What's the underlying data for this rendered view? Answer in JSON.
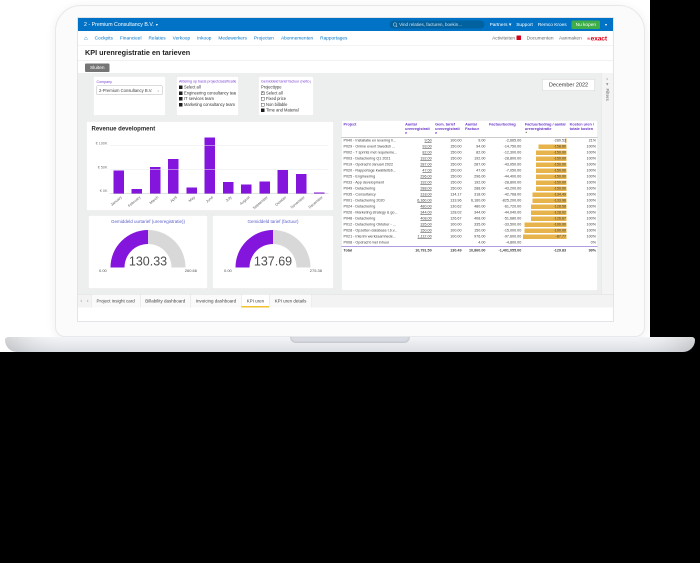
{
  "topbar": {
    "title": "2 - Premium Consultancy B.V.",
    "search_placeholder": "Vind relaties, facturen, boekin...",
    "links": [
      "Partners",
      "Support",
      "Remco Kroes"
    ],
    "buy_button": "Nu kopen"
  },
  "navbar": {
    "items": [
      "Cockpits",
      "Financieel",
      "Relaties",
      "Verkoop",
      "Inkoop",
      "Medewerkers",
      "Projecten",
      "Abonnementen",
      "Rapportages"
    ],
    "right_items": [
      "Activiteiten",
      "Documenten",
      "Aanmaken"
    ],
    "logo_text": "exact"
  },
  "page": {
    "title": "KPI urenregistratie en tarieven",
    "close_button": "Sluiten",
    "period": "December 2022",
    "filters_strip_label": "Filters"
  },
  "filters": {
    "company": {
      "label": "Company",
      "value": "2-Premium Consultancy B.V."
    },
    "department": {
      "label": "Afdeling op basis projectclassificatie",
      "options": [
        {
          "label": "Select all",
          "state": "on"
        },
        {
          "label": "Engineering consultancy team",
          "state": "on"
        },
        {
          "label": "IT services team",
          "state": "on"
        },
        {
          "label": "Marketing consultancy team",
          "state": "on"
        }
      ]
    },
    "projecttype": {
      "label": "Gemiddeld tarief factuur (netto prijs)",
      "sublabel": "Projecttype",
      "options": [
        {
          "label": "Select all",
          "state": "x"
        },
        {
          "label": "Fixed price",
          "state": "off"
        },
        {
          "label": "Non billable",
          "state": "off"
        },
        {
          "label": "Time and Material",
          "state": "on"
        }
      ]
    }
  },
  "chart_data": [
    {
      "type": "bar",
      "title": "Revenue development",
      "categories": [
        "January",
        "February",
        "March",
        "April",
        "May",
        "June",
        "July",
        "August",
        "September",
        "October",
        "November",
        "December"
      ],
      "values": [
        48,
        10,
        56,
        73,
        13,
        118,
        24,
        19,
        25,
        50,
        41,
        2
      ],
      "unit": "K EUR",
      "ylim": [
        0,
        120
      ],
      "yticks": [
        {
          "label": "€ 0K",
          "v": 0
        },
        {
          "label": "€ 50K",
          "v": 50
        },
        {
          "label": "€ 100K",
          "v": 100
        }
      ],
      "bar_color": "#8315dd",
      "grid": true,
      "legend": false
    },
    {
      "type": "gauge",
      "title": "Gemiddeld uurtarief (urenregistratie))",
      "value": 130.33,
      "min": 0,
      "max": 260.66,
      "value_label": "130.33",
      "min_label": "0.00",
      "max_label": "260.66",
      "arc_color": "#8315dd"
    },
    {
      "type": "gauge",
      "title": "Gemiddeld tarief (factuur)",
      "value": 137.69,
      "min": 0,
      "max": 275.38,
      "value_label": "137.69",
      "min_label": "0.00",
      "max_label": "275.38",
      "arc_color": "#8315dd"
    },
    {
      "type": "table",
      "columns": [
        "Project",
        "Aantal urenregistratie",
        "Gem. tarief urenregistratie",
        "Aantal Factuur",
        "Factuurbedrag",
        "Factuurbedrag / aantal urenregistratie",
        "Kosten uren / totale kosten"
      ],
      "sort_column": 5,
      "rows": [
        {
          "cells": [
            "P040 - Installatie en levering h...",
            "9.50",
            "100.00",
            "9.00",
            "-2,665.00",
            "-280.53",
            "21%"
          ],
          "bar": 4
        },
        {
          "cells": [
            "P029 - Online event Swedish ...",
            "93.00",
            "150.00",
            "94.00",
            "-14,750.00",
            "-158.60",
            "100%"
          ],
          "bar": 63
        },
        {
          "cells": [
            "P002 - 7 sprints met requireme...",
            "82.00",
            "150.00",
            "82.00",
            "-12,300.00",
            "-150.00",
            "100%"
          ],
          "bar": 68
        },
        {
          "cells": [
            "P003 - Detachering Q1 2021",
            "192.00",
            "150.00",
            "192.00",
            "-28,800.00",
            "-150.00",
            "100%"
          ],
          "bar": 68
        },
        {
          "cells": [
            "P019 - Opdracht Januari 2022",
            "287.00",
            "150.00",
            "287.00",
            "-43,050.00",
            "-150.00",
            "100%"
          ],
          "bar": 68
        },
        {
          "cells": [
            "P020 - Rapportage kwaliteitsb...",
            "47.00",
            "150.00",
            "47.00",
            "-7,050.00",
            "-150.00",
            "100%"
          ],
          "bar": 68
        },
        {
          "cells": [
            "P025 - Engineering",
            "296.00",
            "150.00",
            "296.00",
            "-44,400.00",
            "-150.00",
            "100%"
          ],
          "bar": 68
        },
        {
          "cells": [
            "P033 - App development",
            "192.00",
            "150.00",
            "192.00",
            "-28,800.00",
            "-150.00",
            "100%"
          ],
          "bar": 68
        },
        {
          "cells": [
            "P049 - Detachering",
            "288.00",
            "150.00",
            "288.00",
            "-43,200.00",
            "-150.00",
            "100%"
          ],
          "bar": 68
        },
        {
          "cells": [
            "P035 - Consultancy",
            "318.00",
            "134.17",
            "318.00",
            "-42,768.00",
            "-134.49",
            "100%"
          ],
          "bar": 76
        },
        {
          "cells": [
            "P001 - Detachering 2020",
            "6,160.00",
            "133.96",
            "6,160.00",
            "-825,200.00",
            "-133.96",
            "100%"
          ],
          "bar": 76
        },
        {
          "cells": [
            "P024 - Detachering",
            "480.00",
            "130.62",
            "480.00",
            "-61,720.00",
            "-128.58",
            "100%"
          ],
          "bar": 79
        },
        {
          "cells": [
            "P026 - Marketing strategy & go...",
            "344.00",
            "128.02",
            "344.00",
            "-44,040.00",
            "-128.02",
            "100%"
          ],
          "bar": 79
        },
        {
          "cells": [
            "P048 - Detachering",
            "408.00",
            "126.67",
            "408.00",
            "-51,680.00",
            "-126.67",
            "100%"
          ],
          "bar": 80
        },
        {
          "cells": [
            "P012 - Detachering Oktober - ...",
            "335.00",
            "100.00",
            "335.00",
            "-33,500.00",
            "-100.00",
            "100%"
          ],
          "bar": 94
        },
        {
          "cells": [
            "P028 - Opzetten database t.b.v...",
            "150.00",
            "100.00",
            "150.00",
            "-15,000.00",
            "-100.00",
            "100%"
          ],
          "bar": 94
        },
        {
          "cells": [
            "P021 - Interim werkzaamhede...",
            "1,112.00",
            "100.00",
            "976.00",
            "-97,600.00",
            "-87.77",
            "100%"
          ],
          "bar": 100
        },
        {
          "cells": [
            "P008 - Opdracht met inhuur",
            "",
            "",
            "4.00",
            "-4,800.00",
            "",
            "0%"
          ],
          "bar": 0
        }
      ],
      "total": {
        "cells": [
          "Total",
          "10,791.50",
          "130.49",
          "10,860.00",
          "-1,401,055.00",
          "-129.83",
          "99%"
        ]
      }
    }
  ],
  "tabs": {
    "prev_icon": "‹",
    "next_icon": "›",
    "items": [
      "Project insight card",
      "Billability dashboard",
      "Invoicing dashboard",
      "KPI uren",
      "KPI uren details"
    ],
    "active": "KPI uren"
  },
  "colors": {
    "topbar_blue": "#0173c7",
    "accent_purple": "#8315dd",
    "databar_gold": "#e7b44b",
    "active_tab_yellow": "#f1c232",
    "logo_red": "#e2001a",
    "header_purple": "#6b35c9"
  }
}
